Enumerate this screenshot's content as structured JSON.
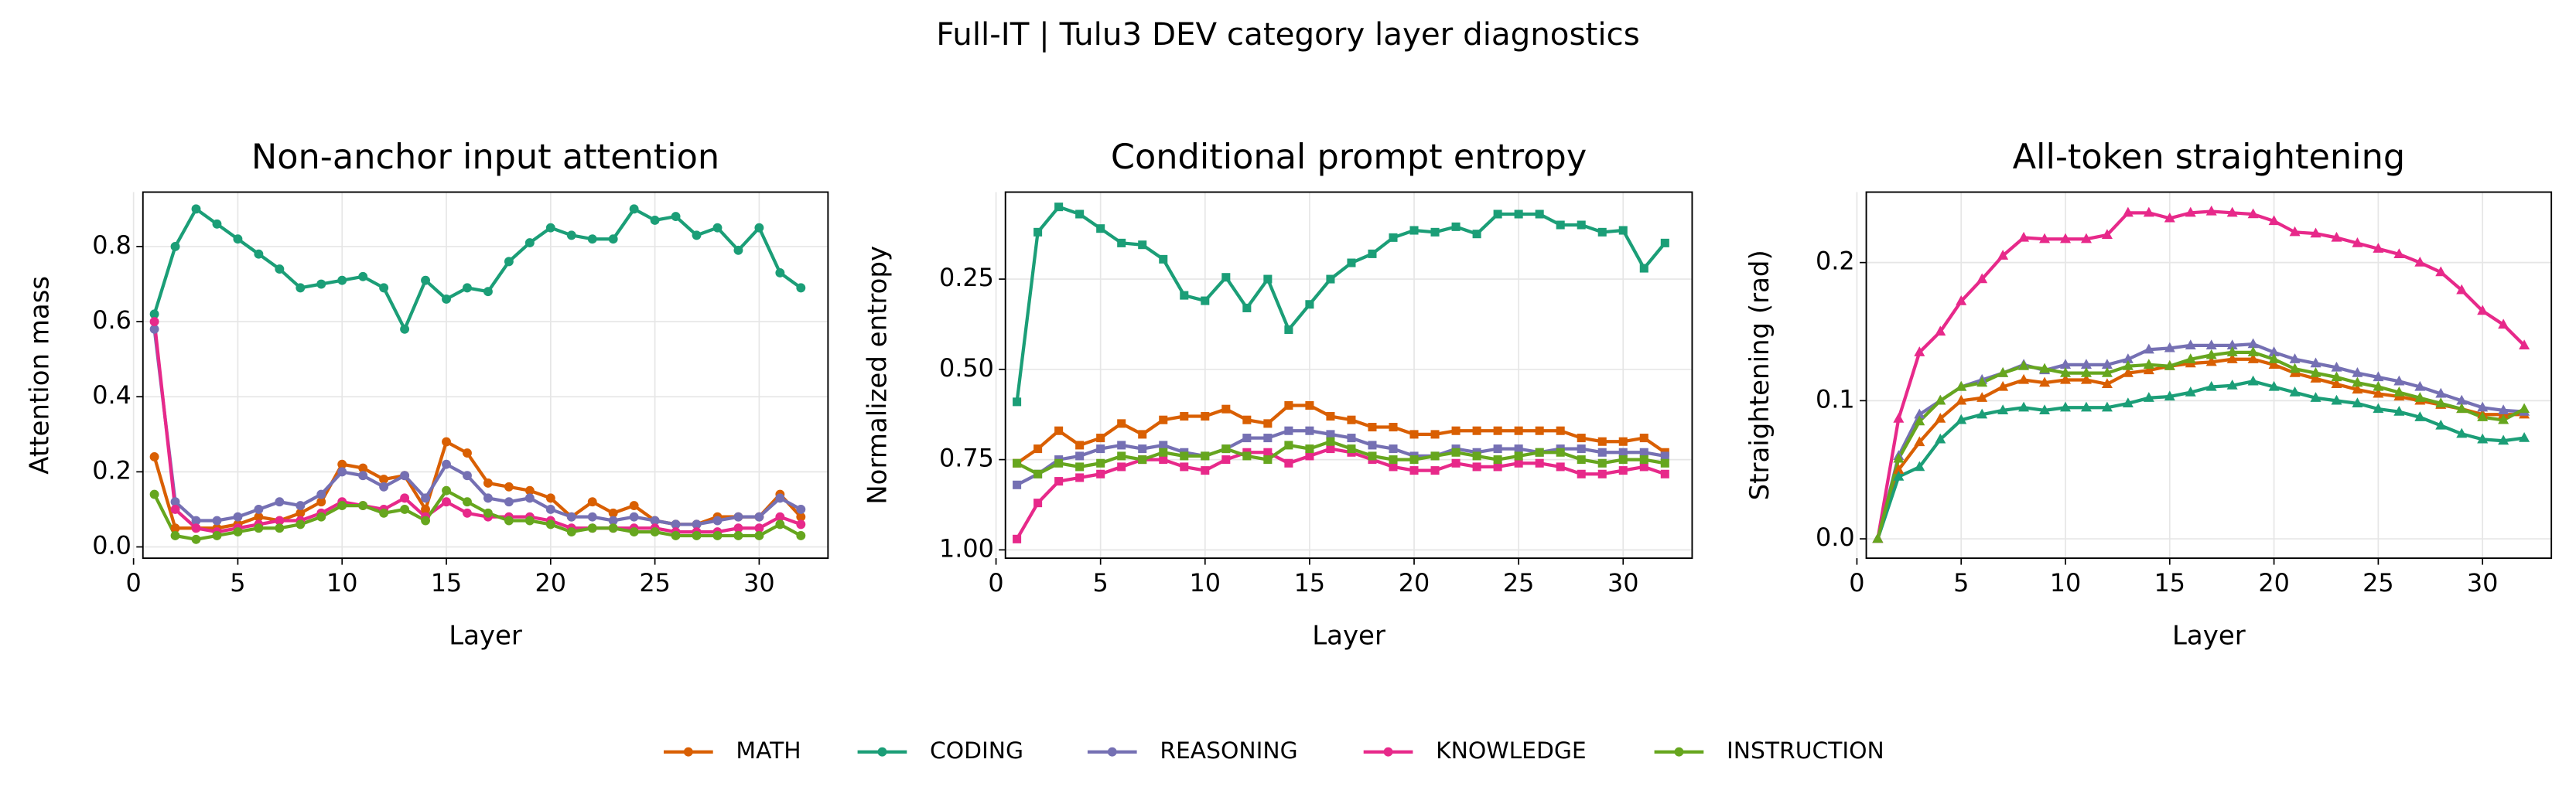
{
  "title": "Full-IT | Tulu3 DEV category layer diagnostics",
  "chart_data": [
    {
      "type": "line",
      "title": "Non-anchor input attention",
      "xlabel": "Layer",
      "ylabel": "Attention mass",
      "marker": "circle",
      "x": [
        1,
        2,
        3,
        4,
        5,
        6,
        7,
        8,
        9,
        10,
        11,
        12,
        13,
        14,
        15,
        16,
        17,
        18,
        19,
        20,
        21,
        22,
        23,
        24,
        25,
        26,
        27,
        28,
        29,
        30,
        31,
        32
      ],
      "xlim": [
        0.45,
        33.3
      ],
      "xticks": [
        0,
        5,
        10,
        15,
        20,
        25,
        30
      ],
      "ylim": [
        -0.03,
        0.945
      ],
      "yticks": [
        {
          "value": 0,
          "label": "0.0"
        },
        0.2,
        0.4,
        0.6,
        0.8
      ],
      "grid": true,
      "series": [
        {
          "name": "MATH",
          "color": "#d95f02",
          "values": [
            0.24,
            0.05,
            0.05,
            0.05,
            0.06,
            0.08,
            0.07,
            0.09,
            0.12,
            0.22,
            0.21,
            0.18,
            0.19,
            0.1,
            0.28,
            0.25,
            0.17,
            0.16,
            0.15,
            0.13,
            0.08,
            0.12,
            0.09,
            0.11,
            0.07,
            0.06,
            0.06,
            0.08,
            0.08,
            0.08,
            0.14,
            0.08
          ]
        },
        {
          "name": "CODING",
          "color": "#1b9e77",
          "values": [
            0.62,
            0.8,
            0.9,
            0.86,
            0.82,
            0.78,
            0.74,
            0.69,
            0.7,
            0.71,
            0.72,
            0.69,
            0.58,
            0.71,
            0.66,
            0.69,
            0.68,
            0.76,
            0.81,
            0.85,
            0.83,
            0.82,
            0.82,
            0.9,
            0.87,
            0.88,
            0.83,
            0.85,
            0.79,
            0.85,
            0.73,
            0.69
          ]
        },
        {
          "name": "REASONING",
          "color": "#7570b3",
          "values": [
            0.58,
            0.12,
            0.07,
            0.07,
            0.08,
            0.1,
            0.12,
            0.11,
            0.14,
            0.2,
            0.19,
            0.16,
            0.19,
            0.13,
            0.22,
            0.19,
            0.13,
            0.12,
            0.13,
            0.1,
            0.08,
            0.08,
            0.07,
            0.08,
            0.07,
            0.06,
            0.06,
            0.07,
            0.08,
            0.08,
            0.13,
            0.1
          ]
        },
        {
          "name": "KNOWLEDGE",
          "color": "#e7298a",
          "values": [
            0.6,
            0.1,
            0.05,
            0.04,
            0.05,
            0.06,
            0.07,
            0.07,
            0.09,
            0.12,
            0.11,
            0.1,
            0.13,
            0.08,
            0.12,
            0.09,
            0.08,
            0.08,
            0.08,
            0.07,
            0.05,
            0.05,
            0.05,
            0.05,
            0.05,
            0.04,
            0.04,
            0.04,
            0.05,
            0.05,
            0.08,
            0.06
          ]
        },
        {
          "name": "INSTRUCTION",
          "color": "#66a61e",
          "values": [
            0.14,
            0.03,
            0.02,
            0.03,
            0.04,
            0.05,
            0.05,
            0.06,
            0.08,
            0.11,
            0.11,
            0.09,
            0.1,
            0.07,
            0.15,
            0.12,
            0.09,
            0.07,
            0.07,
            0.06,
            0.04,
            0.05,
            0.05,
            0.04,
            0.04,
            0.03,
            0.03,
            0.03,
            0.03,
            0.03,
            0.06,
            0.03
          ]
        }
      ]
    },
    {
      "type": "line",
      "title": "Conditional prompt entropy",
      "xlabel": "Layer",
      "ylabel": "Normalized entropy",
      "marker": "square",
      "x": [
        1,
        2,
        3,
        4,
        5,
        6,
        7,
        8,
        9,
        10,
        11,
        12,
        13,
        14,
        15,
        16,
        17,
        18,
        19,
        20,
        21,
        22,
        23,
        24,
        25,
        26,
        27,
        28,
        29,
        30,
        31,
        32
      ],
      "xlim": [
        0.45,
        33.3
      ],
      "xticks": [
        0,
        5,
        10,
        15,
        20,
        25,
        30
      ],
      "ylim": [
        1.023,
        0.009
      ],
      "yticks": [
        0.25,
        {
          "value": 0.5,
          "label": "0.50"
        },
        0.75,
        {
          "value": 1,
          "label": "1.00"
        }
      ],
      "grid": true,
      "series": [
        {
          "name": "MATH",
          "color": "#d95f02",
          "values": [
            0.76,
            0.72,
            0.67,
            0.71,
            0.69,
            0.65,
            0.68,
            0.64,
            0.63,
            0.63,
            0.61,
            0.64,
            0.65,
            0.6,
            0.6,
            0.63,
            0.64,
            0.66,
            0.66,
            0.68,
            0.68,
            0.67,
            0.67,
            0.67,
            0.67,
            0.67,
            0.67,
            0.69,
            0.7,
            0.7,
            0.69,
            0.73
          ]
        },
        {
          "name": "CODING",
          "color": "#1b9e77",
          "values": [
            0.59,
            0.12,
            0.05,
            0.07,
            0.11,
            0.15,
            0.155,
            0.195,
            0.295,
            0.31,
            0.245,
            0.33,
            0.25,
            0.39,
            0.32,
            0.25,
            0.205,
            0.18,
            0.135,
            0.115,
            0.12,
            0.105,
            0.125,
            0.07,
            0.07,
            0.07,
            0.1,
            0.1,
            0.12,
            0.115,
            0.22,
            0.15
          ]
        },
        {
          "name": "REASONING",
          "color": "#7570b3",
          "values": [
            0.82,
            0.79,
            0.75,
            0.74,
            0.72,
            0.71,
            0.72,
            0.71,
            0.73,
            0.74,
            0.72,
            0.69,
            0.69,
            0.67,
            0.67,
            0.68,
            0.69,
            0.71,
            0.72,
            0.74,
            0.74,
            0.72,
            0.73,
            0.72,
            0.72,
            0.73,
            0.72,
            0.72,
            0.73,
            0.73,
            0.73,
            0.74
          ]
        },
        {
          "name": "KNOWLEDGE",
          "color": "#e7298a",
          "values": [
            0.97,
            0.87,
            0.81,
            0.8,
            0.79,
            0.77,
            0.75,
            0.75,
            0.77,
            0.78,
            0.75,
            0.73,
            0.73,
            0.76,
            0.74,
            0.72,
            0.73,
            0.75,
            0.77,
            0.78,
            0.78,
            0.76,
            0.77,
            0.77,
            0.76,
            0.76,
            0.77,
            0.79,
            0.79,
            0.78,
            0.77,
            0.79
          ]
        },
        {
          "name": "INSTRUCTION",
          "color": "#66a61e",
          "values": [
            0.76,
            0.79,
            0.76,
            0.77,
            0.76,
            0.74,
            0.75,
            0.73,
            0.74,
            0.74,
            0.72,
            0.74,
            0.75,
            0.71,
            0.72,
            0.7,
            0.72,
            0.74,
            0.75,
            0.75,
            0.74,
            0.73,
            0.74,
            0.75,
            0.74,
            0.73,
            0.73,
            0.75,
            0.76,
            0.75,
            0.75,
            0.76
          ]
        }
      ]
    },
    {
      "type": "line",
      "title": "All-token straightening",
      "xlabel": "Layer",
      "ylabel": "Straightening (rad)",
      "marker": "triangle",
      "x": [
        1,
        2,
        3,
        4,
        5,
        6,
        7,
        8,
        9,
        10,
        11,
        12,
        13,
        14,
        15,
        16,
        17,
        18,
        19,
        20,
        21,
        22,
        23,
        24,
        25,
        26,
        27,
        28,
        29,
        30,
        31,
        32
      ],
      "xlim": [
        0.45,
        33.3
      ],
      "xticks": [
        0,
        5,
        10,
        15,
        20,
        25,
        30
      ],
      "ylim": [
        -0.014,
        0.251
      ],
      "yticks": [
        {
          "value": 0,
          "label": "0.0"
        },
        0.1,
        0.2
      ],
      "grid": true,
      "series": [
        {
          "name": "MATH",
          "color": "#d95f02",
          "values": [
            0,
            0.05,
            0.07,
            0.087,
            0.1,
            0.102,
            0.11,
            0.115,
            0.113,
            0.115,
            0.115,
            0.112,
            0.12,
            0.122,
            0.125,
            0.127,
            0.128,
            0.13,
            0.13,
            0.126,
            0.12,
            0.116,
            0.112,
            0.108,
            0.105,
            0.103,
            0.1,
            0.097,
            0.094,
            0.09,
            0.09,
            0.09
          ]
        },
        {
          "name": "CODING",
          "color": "#1b9e77",
          "values": [
            0,
            0.045,
            0.052,
            0.072,
            0.086,
            0.09,
            0.093,
            0.095,
            0.093,
            0.095,
            0.095,
            0.095,
            0.098,
            0.102,
            0.103,
            0.106,
            0.11,
            0.111,
            0.114,
            0.11,
            0.106,
            0.102,
            0.1,
            0.098,
            0.094,
            0.092,
            0.088,
            0.082,
            0.076,
            0.072,
            0.071,
            0.073
          ]
        },
        {
          "name": "REASONING",
          "color": "#7570b3",
          "values": [
            0,
            0.06,
            0.09,
            0.1,
            0.11,
            0.115,
            0.12,
            0.126,
            0.122,
            0.126,
            0.126,
            0.126,
            0.13,
            0.137,
            0.138,
            0.14,
            0.14,
            0.14,
            0.141,
            0.135,
            0.13,
            0.127,
            0.124,
            0.12,
            0.117,
            0.114,
            0.11,
            0.105,
            0.1,
            0.095,
            0.093,
            0.092
          ]
        },
        {
          "name": "KNOWLEDGE",
          "color": "#e7298a",
          "values": [
            0,
            0.087,
            0.135,
            0.15,
            0.172,
            0.188,
            0.205,
            0.218,
            0.217,
            0.217,
            0.217,
            0.22,
            0.236,
            0.236,
            0.232,
            0.236,
            0.237,
            0.236,
            0.235,
            0.23,
            0.222,
            0.221,
            0.218,
            0.214,
            0.21,
            0.206,
            0.2,
            0.193,
            0.18,
            0.165,
            0.155,
            0.14
          ]
        },
        {
          "name": "INSTRUCTION",
          "color": "#66a61e",
          "values": [
            0,
            0.058,
            0.085,
            0.1,
            0.11,
            0.113,
            0.12,
            0.125,
            0.123,
            0.12,
            0.12,
            0.12,
            0.125,
            0.126,
            0.125,
            0.13,
            0.133,
            0.135,
            0.135,
            0.13,
            0.123,
            0.12,
            0.117,
            0.113,
            0.11,
            0.106,
            0.102,
            0.098,
            0.094,
            0.088,
            0.086,
            0.094
          ]
        }
      ]
    }
  ]
}
